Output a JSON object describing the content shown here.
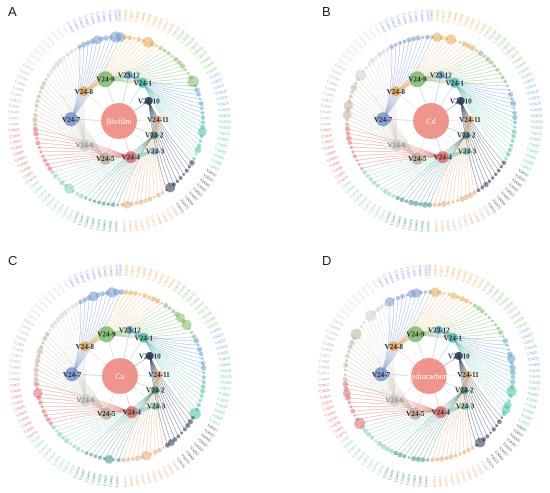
{
  "figure": {
    "panels": [
      {
        "letter": "A",
        "center_label": "Biofilm"
      },
      {
        "letter": "B",
        "center_label": "Cd"
      },
      {
        "letter": "C",
        "center_label": "Cu"
      },
      {
        "letter": "D",
        "center_label": "hydrocarbons"
      }
    ],
    "hubs": [
      {
        "label": "V24-9",
        "angle": 108,
        "r": 0.44,
        "color": "#7dbb6c",
        "leaves": 10,
        "size": 8
      },
      {
        "label": "V23-12",
        "angle": 78,
        "r": 0.47,
        "color": "#5c9ec9",
        "leaves": 8,
        "size": 0
      },
      {
        "label": "V24-1",
        "angle": 58,
        "r": 0.45,
        "color": "#4bbfab",
        "leaves": 9,
        "size": 5
      },
      {
        "label": "V24-10",
        "angle": 34,
        "r": 0.36,
        "color": "#23324f",
        "leaves": 9,
        "size": 0
      },
      {
        "label": "V24-11",
        "angle": 2,
        "r": 0.39,
        "color": "#e3a774",
        "leaves": 10,
        "size": 0
      },
      {
        "label": "V24-2",
        "angle": -22,
        "r": 0.38,
        "color": "#3f8f86",
        "leaves": 8,
        "size": 0
      },
      {
        "label": "V24-3",
        "angle": -40,
        "r": 0.47,
        "color": "#7fcdc1",
        "leaves": 9,
        "size": 0
      },
      {
        "label": "V24-4",
        "angle": -72,
        "r": 0.38,
        "color": "#e06b6b",
        "leaves": 10,
        "size": 6
      },
      {
        "label": "V24-5",
        "angle": -110,
        "r": 0.4,
        "color": "#bfae95",
        "leaves": 11,
        "size": 6
      },
      {
        "label": "V24-6",
        "angle": -145,
        "r": 0.42,
        "color": "#cfcfcf",
        "leaves": 9,
        "size": 6
      },
      {
        "label": "V24-7",
        "angle": 178,
        "r": 0.48,
        "color": "#7393cc",
        "leaves": 10,
        "size": 7
      },
      {
        "label": "V24-8",
        "angle": 140,
        "r": 0.46,
        "color": "#e8a84c",
        "leaves": 9,
        "size": 5
      }
    ],
    "leaf_prefix": "V24",
    "outer_ring_count": 112
  }
}
